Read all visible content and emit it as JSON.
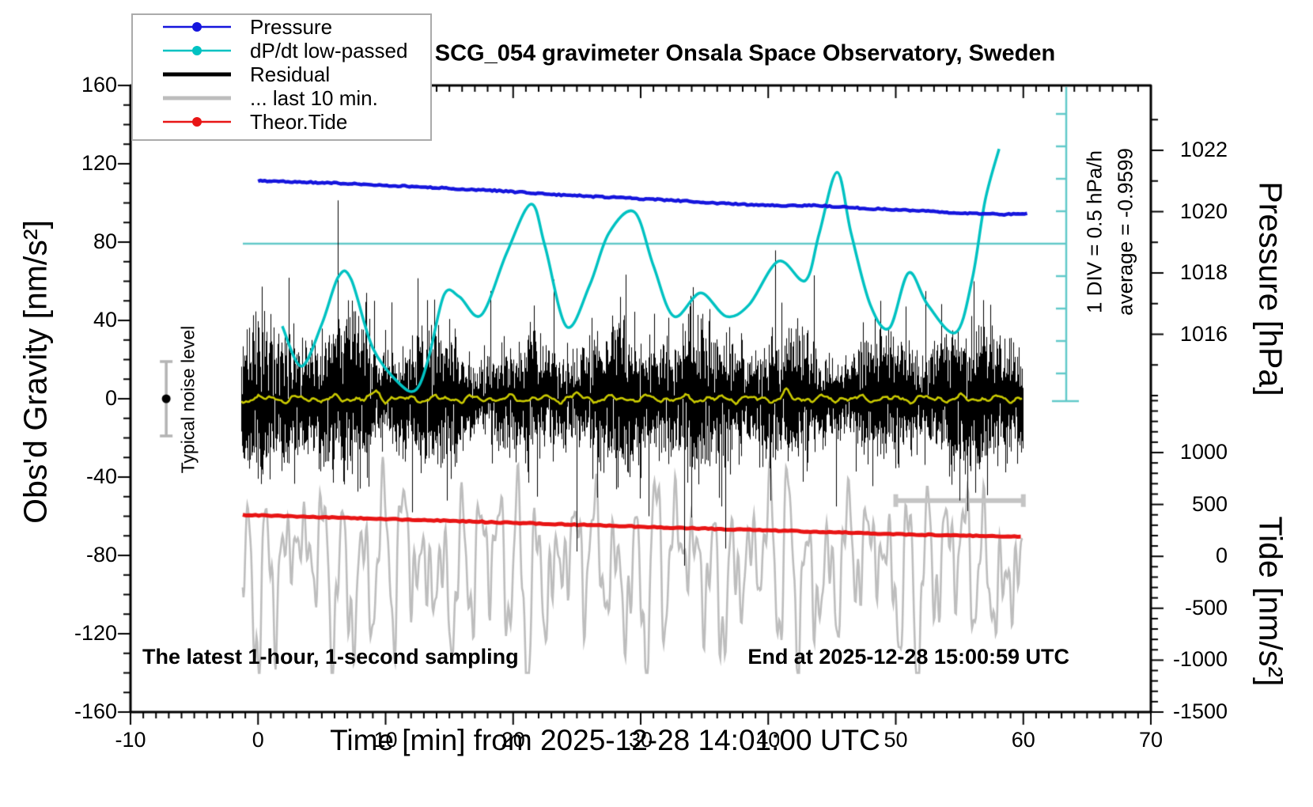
{
  "title": "SCG_054 gravimeter Onsala Space Observatory, Sweden",
  "notes": {
    "sampling": "The latest 1-hour, 1-second sampling",
    "end": "End at 2025-12-28 15:00:59 UTC"
  },
  "annotations": {
    "div_scale": "1 DIV = 0.5 hPa/h",
    "average": "average = -0.9599",
    "noise_level": "Typical noise level"
  },
  "axes": {
    "x": {
      "label": "Time [min] from 2025-12-28 14:01:00 UTC",
      "range": [
        -10,
        70
      ],
      "major_ticks": [
        -10,
        0,
        10,
        20,
        30,
        40,
        50,
        60,
        70
      ],
      "minor_step": 1
    },
    "y_left": {
      "label": "Obs'd Gravity [nm/s²]",
      "range": [
        -160,
        160
      ],
      "major_ticks": [
        160,
        120,
        80,
        40,
        0,
        -40,
        -80,
        -120,
        -160
      ],
      "minor_step": 10
    },
    "y_pressure": {
      "label": "Pressure [hPa]",
      "major_ticks": [
        1022,
        1020,
        1018,
        1016
      ],
      "minor_step": 1
    },
    "y_tide": {
      "label": "Tide [nm/s²]",
      "major_ticks": [
        1000,
        500,
        0,
        -500,
        -1000,
        -1500
      ],
      "minor_step": 100
    }
  },
  "legend": {
    "items": [
      {
        "label": "Pressure",
        "color": "#1515dd",
        "lw": 2.5,
        "marker": true
      },
      {
        "label": "dP/dt low-passed",
        "color": "#00c2c2",
        "lw": 2.5,
        "marker": true
      },
      {
        "label": "Residual",
        "color": "#000000",
        "lw": 5,
        "marker": false
      },
      {
        "label": "... last 10 min.",
        "color": "#bdbdbd",
        "lw": 5,
        "marker": false
      },
      {
        "label": "Theor.Tide",
        "color": "#e81515",
        "lw": 2.5,
        "marker": true
      }
    ]
  },
  "colors": {
    "pressure": "#1515dd",
    "dpdt": "#00c2c2",
    "dpdt_scale": "#62c9c9",
    "residual": "#000000",
    "residual_lowpass": "#c9c900",
    "last10": "#bdbdbd",
    "tide": "#e81515",
    "noise_bar": "#b4b4b4"
  },
  "chart_data": {
    "type": "line",
    "title": "SCG_054 gravimeter Onsala Space Observatory, Sweden",
    "xlabel": "Time [min] from 2025-12-28 14:01:00 UTC",
    "xlim": [
      -10,
      70
    ],
    "ylim_gravity": [
      -160,
      160
    ],
    "ylim_pressure_ticks": [
      1016,
      1022
    ],
    "ylim_tide": [
      -1500,
      1000
    ],
    "grid": false,
    "legend_position": "top-left",
    "series": [
      {
        "name": "Pressure",
        "unit": "hPa",
        "axis": "pressure",
        "points": [
          [
            0,
            1021.0
          ],
          [
            3,
            1020.97
          ],
          [
            6,
            1020.93
          ],
          [
            9,
            1020.88
          ],
          [
            12,
            1020.82
          ],
          [
            15,
            1020.76
          ],
          [
            18,
            1020.7
          ],
          [
            20,
            1020.65
          ],
          [
            22,
            1020.59
          ],
          [
            24,
            1020.54
          ],
          [
            26,
            1020.5
          ],
          [
            28,
            1020.46
          ],
          [
            30,
            1020.42
          ],
          [
            32,
            1020.38
          ],
          [
            34,
            1020.33
          ],
          [
            36,
            1020.28
          ],
          [
            38,
            1020.24
          ],
          [
            40,
            1020.21
          ],
          [
            42,
            1020.19
          ],
          [
            43.5,
            1020.21
          ],
          [
            45,
            1020.17
          ],
          [
            47,
            1020.12
          ],
          [
            49,
            1020.08
          ],
          [
            51,
            1020.04
          ],
          [
            53,
            1020.0
          ],
          [
            55,
            1019.96
          ],
          [
            57,
            1019.93
          ],
          [
            58.5,
            1019.91
          ],
          [
            60,
            1019.93
          ]
        ]
      },
      {
        "name": "dP/dt low-passed",
        "unit": "hPa/h",
        "axis": "dpdt",
        "average": -0.9599,
        "div_hpa_per_h": 0.5,
        "points": [
          [
            1.9,
            -2.23
          ],
          [
            3.4,
            -2.85
          ],
          [
            5.0,
            -2.2
          ],
          [
            6.3,
            -1.47
          ],
          [
            7.3,
            -1.51
          ],
          [
            9.0,
            -2.57
          ],
          [
            11.1,
            -3.12
          ],
          [
            12.4,
            -3.21
          ],
          [
            13.4,
            -2.7
          ],
          [
            14.6,
            -1.74
          ],
          [
            15.8,
            -1.78
          ],
          [
            17.5,
            -2.06
          ],
          [
            19.5,
            -1.1
          ],
          [
            21.4,
            -0.35
          ],
          [
            22.5,
            -1.0
          ],
          [
            24.2,
            -2.24
          ],
          [
            26.0,
            -1.6
          ],
          [
            27.5,
            -0.8
          ],
          [
            29.5,
            -0.47
          ],
          [
            31.0,
            -1.3
          ],
          [
            32.6,
            -2.08
          ],
          [
            34.7,
            -1.72
          ],
          [
            36.7,
            -2.08
          ],
          [
            38.5,
            -1.9
          ],
          [
            40.8,
            -1.23
          ],
          [
            42.9,
            -1.53
          ],
          [
            44.0,
            -0.8
          ],
          [
            45.4,
            0.14
          ],
          [
            46.5,
            -0.8
          ],
          [
            48.0,
            -1.9
          ],
          [
            49.5,
            -2.26
          ],
          [
            51.0,
            -1.41
          ],
          [
            52.5,
            -1.9
          ],
          [
            54.7,
            -2.33
          ],
          [
            56.0,
            -1.5
          ],
          [
            57.0,
            -0.3
          ],
          [
            58.1,
            0.5
          ]
        ]
      },
      {
        "name": "Theor.Tide",
        "unit": "nm/s2",
        "axis": "tide",
        "points": [
          [
            -1.2,
            398
          ],
          [
            5,
            378
          ],
          [
            10,
            360
          ],
          [
            15,
            342
          ],
          [
            20,
            323
          ],
          [
            25,
            305
          ],
          [
            30,
            286
          ],
          [
            35,
            268
          ],
          [
            40,
            250
          ],
          [
            45,
            232
          ],
          [
            50,
            215
          ],
          [
            55,
            200
          ],
          [
            58,
            193
          ],
          [
            60,
            188
          ]
        ]
      },
      {
        "name": "Residual",
        "unit": "nm/s2",
        "axis": "gravity",
        "kind": "noise-1s",
        "t_range": [
          -1.3,
          60
        ],
        "mean": 0,
        "std": 14,
        "seed": 77,
        "extreme_spikes": [
          [
            9.1,
            50
          ],
          [
            12.1,
            -58
          ],
          [
            14.8,
            -52
          ],
          [
            18.2,
            55
          ],
          [
            21.9,
            -50
          ],
          [
            25.0,
            -78
          ],
          [
            28.4,
            52
          ],
          [
            30.6,
            -60
          ],
          [
            34.1,
            57
          ],
          [
            36.3,
            -55
          ],
          [
            40.2,
            -52
          ],
          [
            43.6,
            63
          ],
          [
            45.3,
            -55
          ],
          [
            48.8,
            50
          ],
          [
            52.3,
            55
          ],
          [
            55.0,
            -52
          ],
          [
            57.4,
            48
          ]
        ]
      },
      {
        "name": "Residual low-passed",
        "unit": "nm/s2",
        "axis": "gravity",
        "kind": "smooth-noise",
        "t_range": [
          -1.3,
          60
        ],
        "center": 1,
        "amplitude": 1.6,
        "seed": 12,
        "bumps": [
          [
            9.3,
            3.5
          ],
          [
            25.0,
            2.5
          ],
          [
            41.5,
            3.0
          ]
        ]
      },
      {
        "name": "... last 10 min.",
        "unit": "nm/s2",
        "axis": "gravity",
        "kind": "oscillation",
        "t_range": [
          -1.2,
          60
        ],
        "center": -82,
        "typ_amplitude": 30,
        "max_down": -140,
        "seed": 5
      }
    ],
    "markers": {
      "typical_noise": {
        "t": -7.2,
        "gravity": 0,
        "halfwidth_nm_s2": 19
      },
      "last10_window": {
        "t_start": 50,
        "t_end": 60,
        "gravity": -52
      },
      "dpdt_average_line": -0.9599
    }
  }
}
